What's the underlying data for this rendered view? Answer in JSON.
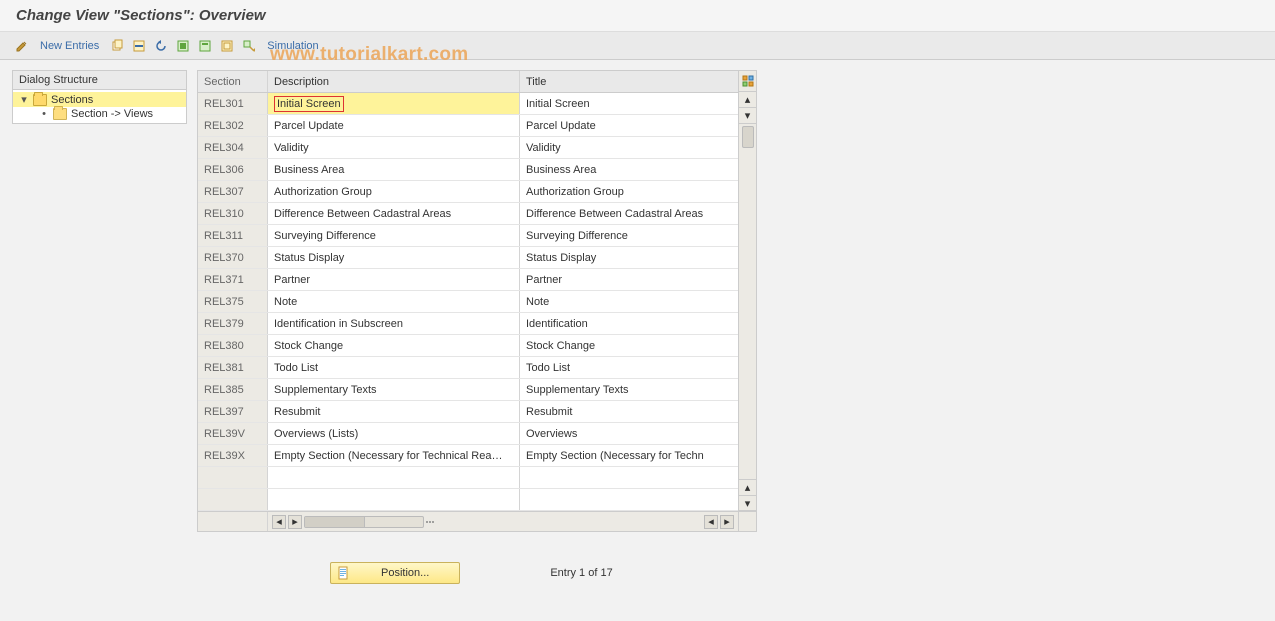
{
  "page_title": "Change View \"Sections\": Overview",
  "toolbar": {
    "new_entries_label": "New Entries",
    "simulation_label": "Simulation"
  },
  "dialog_structure": {
    "header": "Dialog Structure",
    "root_label": "Sections",
    "child_label": "Section -> Views"
  },
  "grid": {
    "columns": {
      "section": "Section",
      "description": "Description",
      "title": "Title"
    },
    "rows": [
      {
        "section": "REL301",
        "description": "Initial Screen",
        "title": "Initial Screen",
        "selected": true
      },
      {
        "section": "REL302",
        "description": "Parcel Update",
        "title": "Parcel Update"
      },
      {
        "section": "REL304",
        "description": "Validity",
        "title": "Validity"
      },
      {
        "section": "REL306",
        "description": "Business Area",
        "title": "Business Area"
      },
      {
        "section": "REL307",
        "description": "Authorization Group",
        "title": "Authorization Group"
      },
      {
        "section": "REL310",
        "description": "Difference Between Cadastral Areas",
        "title": "Difference Between Cadastral Areas"
      },
      {
        "section": "REL311",
        "description": "Surveying Difference",
        "title": "Surveying Difference"
      },
      {
        "section": "REL370",
        "description": "Status Display",
        "title": "Status Display"
      },
      {
        "section": "REL371",
        "description": "Partner",
        "title": "Partner"
      },
      {
        "section": "REL375",
        "description": "Note",
        "title": "Note"
      },
      {
        "section": "REL379",
        "description": "Identification in Subscreen",
        "title": "Identification"
      },
      {
        "section": "REL380",
        "description": "Stock Change",
        "title": "Stock Change"
      },
      {
        "section": "REL381",
        "description": "Todo List",
        "title": "Todo List"
      },
      {
        "section": "REL385",
        "description": "Supplementary Texts",
        "title": "Supplementary Texts"
      },
      {
        "section": "REL397",
        "description": "Resubmit",
        "title": "Resubmit"
      },
      {
        "section": "REL39V",
        "description": "Overviews (Lists)",
        "title": "Overviews"
      },
      {
        "section": "REL39X",
        "description": "Empty Section (Necessary for Technical Rea…",
        "title": "Empty Section (Necessary for Techn"
      }
    ],
    "empty_rows": 2
  },
  "footer": {
    "position_label": "Position...",
    "entry_text": "Entry 1 of 17"
  },
  "watermark": "www.tutorialkart.com",
  "colors": {
    "highlight_bg": "#fef39a",
    "sel_border": "#d33",
    "toolbar_link": "#3a6ca8"
  }
}
